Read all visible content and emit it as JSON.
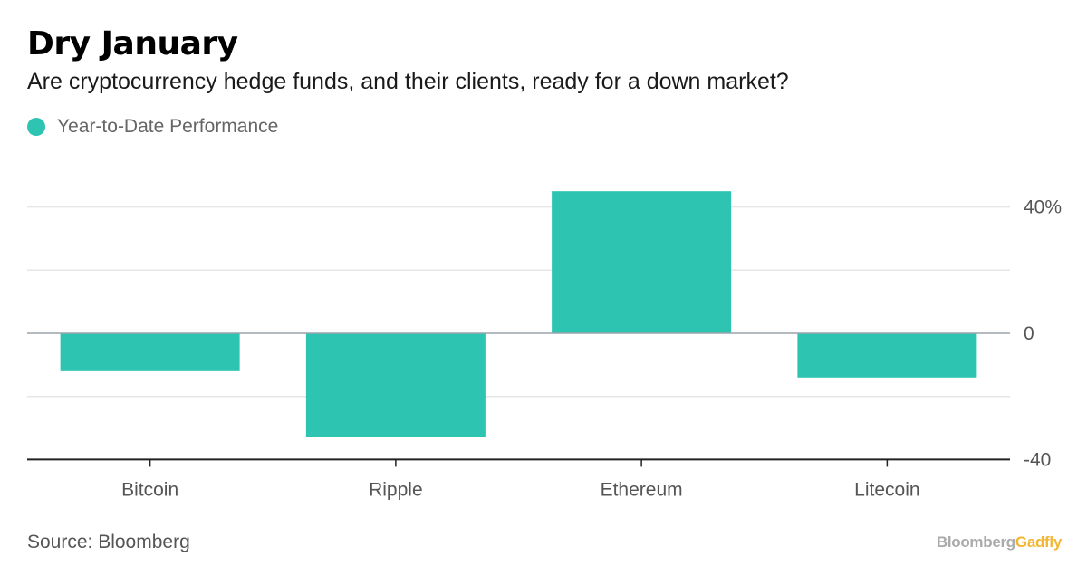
{
  "header": {
    "title": "Dry January",
    "subtitle": "Are cryptocurrency hedge funds, and their clients, ready for a down market?"
  },
  "legend": {
    "label": "Year-to-Date Performance",
    "color": "#2ec4b2"
  },
  "footer": {
    "source": "Source: Bloomberg",
    "brand_part1": "Bloomberg",
    "brand_part2": "Gadfly"
  },
  "chart_data": {
    "type": "bar",
    "categories": [
      "Bitcoin",
      "Ripple",
      "Ethereum",
      "Litecoin"
    ],
    "series": [
      {
        "name": "Year-to-Date Performance",
        "values": [
          -12,
          -33,
          45,
          -14
        ],
        "color": "#2ec4b2"
      }
    ],
    "ylim": [
      -40,
      45
    ],
    "yticks": [
      -40,
      -20,
      0,
      20,
      40
    ],
    "ytick_labels": [
      "-40",
      "",
      "0",
      "",
      "40%"
    ],
    "y_axis_position": "right",
    "grid": true,
    "legend_position": "top-left",
    "title": "Dry January",
    "xlabel": "",
    "ylabel": ""
  }
}
